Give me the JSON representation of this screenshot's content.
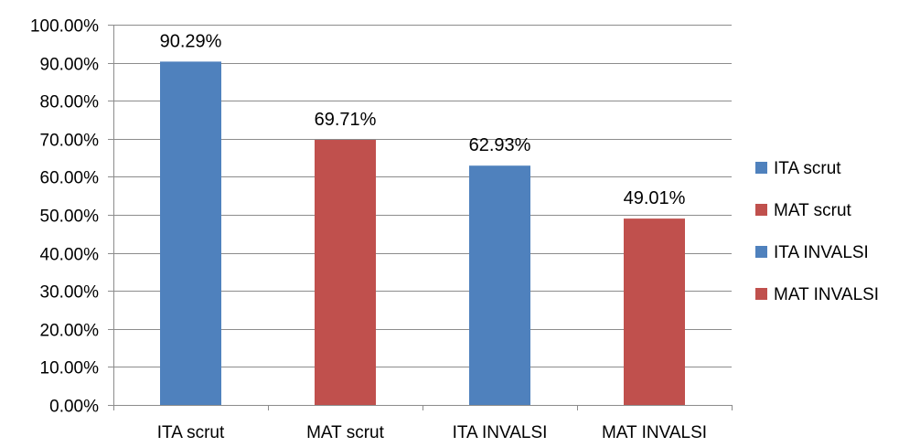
{
  "chart_data": {
    "type": "bar",
    "categories": [
      "ITA scrut",
      "MAT scrut",
      "ITA INVALSI",
      "MAT INVALSI"
    ],
    "values": [
      90.29,
      69.71,
      62.93,
      49.01
    ],
    "data_labels": [
      "90.29%",
      "69.71%",
      "62.93%",
      "49.01%"
    ],
    "bar_colors": [
      "#4f81bd",
      "#c0504d",
      "#4f81bd",
      "#c0504d"
    ],
    "ylim": [
      0,
      100
    ],
    "ytick_values": [
      0,
      10,
      20,
      30,
      40,
      50,
      60,
      70,
      80,
      90,
      100
    ],
    "ytick_labels": [
      "0.00%",
      "10.00%",
      "20.00%",
      "30.00%",
      "40.00%",
      "50.00%",
      "60.00%",
      "70.00%",
      "80.00%",
      "90.00%",
      "100.00%"
    ],
    "grid": true,
    "legend_position": "right",
    "legend": [
      {
        "label": "ITA scrut",
        "color": "#4f81bd"
      },
      {
        "label": "MAT scrut",
        "color": "#c0504d"
      },
      {
        "label": "ITA INVALSI",
        "color": "#4f81bd"
      },
      {
        "label": "MAT INVALSI",
        "color": "#c0504d"
      }
    ],
    "title": "",
    "xlabel": "",
    "ylabel": ""
  }
}
